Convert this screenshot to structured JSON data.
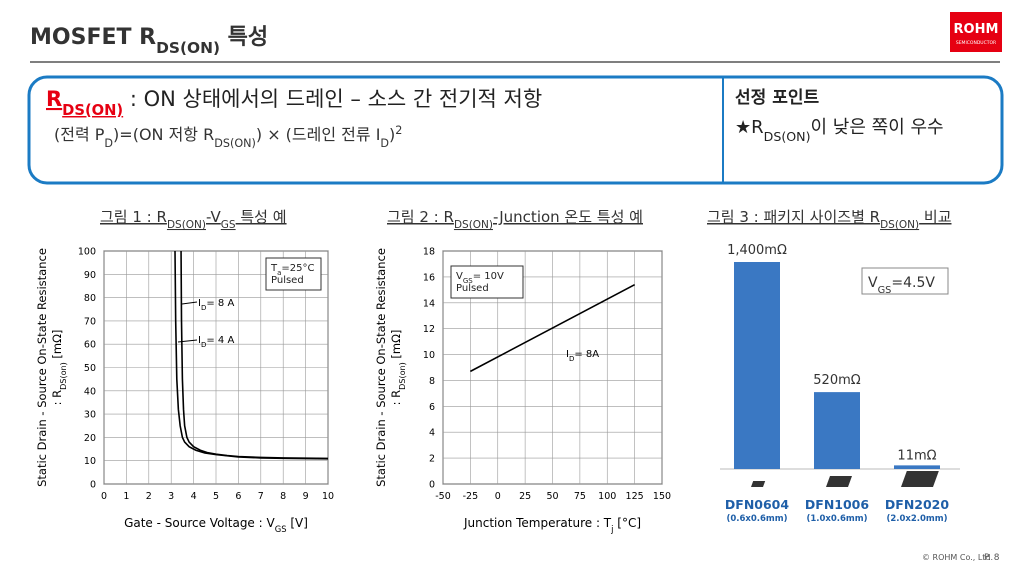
{
  "header": {
    "title": [
      "MOSFET R",
      "DS(ON)",
      " 특성"
    ],
    "logo": "ROHM",
    "logo_sub": "SEMICONDUCTOR"
  },
  "definition": {
    "term": [
      "R",
      "DS(ON)"
    ],
    "text": " : ON 상태에서의 드레인 – 소스 간 전기적 저항",
    "formula": [
      "(전력 P",
      "D",
      ")=(ON 저항 R",
      "DS(ON)",
      ") × (드레인 전류 I",
      "D",
      ")",
      "2"
    ]
  },
  "point": {
    "title": "선정 포인트",
    "text": [
      "★R",
      "DS(ON)",
      "이 낮은 쪽이 우수"
    ]
  },
  "chart_data": [
    {
      "type": "line",
      "title": [
        "그림 1 : R",
        "DS(ON)",
        "-V",
        "GS",
        " 특성 예"
      ],
      "ylabel": "Static Drain - Source On-State Resistance",
      "ylabel2": [
        ": R",
        "DS(on)",
        " [mΩ]"
      ],
      "xlabel": [
        "Gate - Source Voltage : V",
        "GS",
        " [V]"
      ],
      "xlim": [
        0,
        10
      ],
      "ylim": [
        0,
        100
      ],
      "xticks": [
        0,
        1,
        2,
        3,
        4,
        5,
        6,
        7,
        8,
        9,
        10
      ],
      "yticks": [
        0,
        10,
        20,
        30,
        40,
        50,
        60,
        70,
        80,
        90,
        100
      ],
      "grid": true,
      "box": [
        [
          "T",
          "a",
          "=25°C"
        ],
        [
          "Pulsed"
        ]
      ],
      "series": [
        {
          "label": [
            "I",
            "D",
            "= 8 A"
          ],
          "color": "#000000",
          "x": [
            3.44,
            3.46,
            3.5,
            3.55,
            3.6,
            3.7,
            3.8,
            4,
            4.3,
            4.6,
            5,
            5.5,
            6,
            7,
            8,
            9,
            10
          ],
          "values": [
            100,
            70,
            45,
            32,
            25,
            20,
            18,
            16,
            14.5,
            13.5,
            12.8,
            12.2,
            11.8,
            11.4,
            11.2,
            11.1,
            11
          ]
        },
        {
          "label": [
            "I",
            "D",
            "= 4 A"
          ],
          "color": "#000000",
          "x": [
            3.17,
            3.2,
            3.25,
            3.32,
            3.4,
            3.5,
            3.6,
            3.8,
            4.1,
            4.5,
            5,
            6,
            7,
            8,
            9,
            10
          ],
          "values": [
            100,
            70,
            45,
            32,
            25,
            20,
            18,
            16,
            14.5,
            13.3,
            12.6,
            11.6,
            11.2,
            11,
            10.9,
            10.8
          ]
        }
      ]
    },
    {
      "type": "line",
      "title": [
        "그림 2 : R",
        "DS(ON)",
        "-Junction 온도 특성 예"
      ],
      "ylabel": "Static Drain - Source On-State Resistance",
      "ylabel2": [
        ": R",
        "DS(on)",
        " [mΩ]"
      ],
      "xlabel": [
        "Junction Temperature : T",
        "j",
        " [°C]"
      ],
      "xlim": [
        -50,
        150
      ],
      "ylim": [
        0,
        18
      ],
      "xticks": [
        -50,
        -25,
        0,
        25,
        50,
        75,
        100,
        125,
        150
      ],
      "yticks": [
        0,
        2,
        4,
        6,
        8,
        10,
        12,
        14,
        16,
        18
      ],
      "grid": true,
      "box": [
        [
          "V",
          "GS",
          "= 10V"
        ],
        [
          "Pulsed"
        ]
      ],
      "series": [
        {
          "label": [
            "I",
            "D",
            "= 8A"
          ],
          "color": "#000000",
          "x": [
            -25,
            125
          ],
          "values": [
            8.7,
            15.4
          ]
        }
      ]
    },
    {
      "type": "bar",
      "title": [
        "그림 3 : 패키지 사이즈별 R",
        "DS(ON)",
        " 비교"
      ],
      "categories": [
        "DFN0604",
        "DFN1006",
        "DFN2020"
      ],
      "sublabels": [
        "(0.6x0.6mm)",
        "(1.0x0.6mm)",
        "(2.0x2.0mm)"
      ],
      "values": [
        1400,
        520,
        11
      ],
      "value_labels": [
        "1,400mΩ",
        "520mΩ",
        "11mΩ"
      ],
      "color": "#3a78c3",
      "ylim": [
        0,
        1400
      ],
      "box": [
        [
          "V",
          "GS",
          "=4.5V"
        ]
      ]
    }
  ],
  "footer": {
    "copyright": "© ROHM Co., Ltd.",
    "page": "P. 8"
  }
}
